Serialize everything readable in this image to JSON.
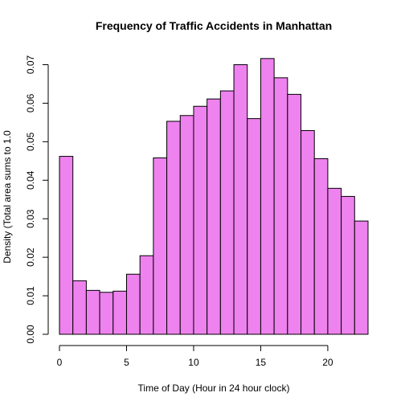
{
  "chart_data": {
    "type": "bar",
    "title": "Frequency of Traffic Accidents in Manhattan",
    "xlabel": "Time of Day (Hour in 24 hour clock)",
    "ylabel": "Density (Total area sums to 1.0",
    "bin_edges": [
      0,
      1,
      2,
      3,
      4,
      5,
      6,
      7,
      8,
      9,
      10,
      11,
      12,
      13,
      14,
      15,
      16,
      17,
      18,
      19,
      20,
      21,
      22,
      23
    ],
    "values": [
      0.0462,
      0.0139,
      0.0114,
      0.0109,
      0.0112,
      0.0156,
      0.0204,
      0.0458,
      0.0553,
      0.0568,
      0.0592,
      0.0611,
      0.0632,
      0.07,
      0.056,
      0.0716,
      0.0666,
      0.0623,
      0.0529,
      0.0456,
      0.0379,
      0.0358,
      0.0294
    ],
    "xlim": [
      0,
      23
    ],
    "ylim": [
      0,
      0.07
    ],
    "x_ticks": [
      0,
      5,
      10,
      15,
      20
    ],
    "y_ticks": [
      0.0,
      0.01,
      0.02,
      0.03,
      0.04,
      0.05,
      0.06,
      0.07
    ],
    "y_tick_labels": [
      "0.00",
      "0.01",
      "0.02",
      "0.03",
      "0.04",
      "0.05",
      "0.06",
      "0.07"
    ],
    "bar_color": "#EE82EE",
    "grid": false,
    "legend": "none"
  }
}
